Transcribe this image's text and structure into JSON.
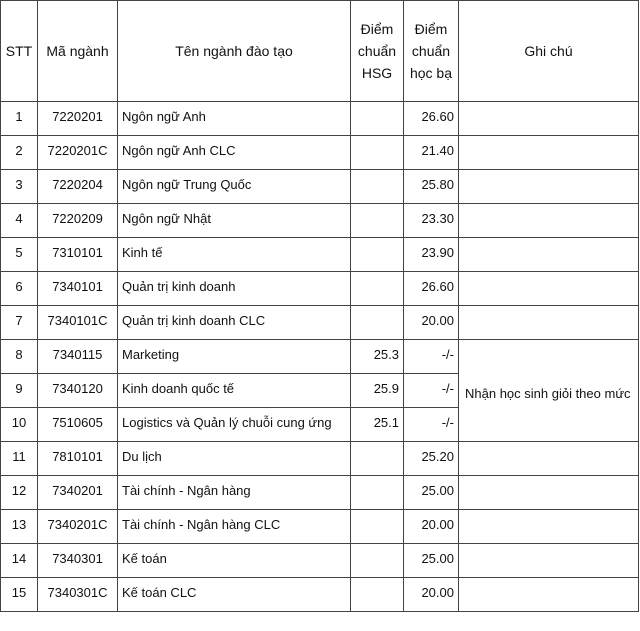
{
  "headers": {
    "stt": "STT",
    "ma_nganh": "Mã ngành",
    "ten_nganh": "Tên ngành đào tạo",
    "diem_hsg": "Điểm chuẩn HSG",
    "diem_hoc_ba": "Điểm chuẩn học bạ",
    "ghi_chu": "Ghi chú"
  },
  "rows": [
    {
      "stt": "1",
      "ma": "7220201",
      "ten": "Ngôn ngữ Anh",
      "hsg": "",
      "hocba": "26.60"
    },
    {
      "stt": "2",
      "ma": "7220201C",
      "ten": "Ngôn ngữ Anh CLC",
      "hsg": "",
      "hocba": "21.40"
    },
    {
      "stt": "3",
      "ma": "7220204",
      "ten": "Ngôn ngữ Trung Quốc",
      "hsg": "",
      "hocba": "25.80"
    },
    {
      "stt": "4",
      "ma": "7220209",
      "ten": "Ngôn ngữ Nhật",
      "hsg": "",
      "hocba": "23.30"
    },
    {
      "stt": "5",
      "ma": "7310101",
      "ten": "Kinh tế",
      "hsg": "",
      "hocba": "23.90"
    },
    {
      "stt": "6",
      "ma": "7340101",
      "ten": "Quản trị kinh doanh",
      "hsg": "",
      "hocba": "26.60"
    },
    {
      "stt": "7",
      "ma": "7340101C",
      "ten": "Quản trị kinh doanh CLC",
      "hsg": "",
      "hocba": "20.00"
    },
    {
      "stt": "8",
      "ma": "7340115",
      "ten": "Marketing",
      "hsg": "25.3",
      "hocba": "-/-"
    },
    {
      "stt": "9",
      "ma": "7340120",
      "ten": "Kinh doanh quốc tế",
      "hsg": "25.9",
      "hocba": "-/-"
    },
    {
      "stt": "10",
      "ma": "7510605",
      "ten": "Logistics và Quản lý chuỗi cung ứng",
      "hsg": "25.1",
      "hocba": "-/-"
    },
    {
      "stt": "11",
      "ma": "7810101",
      "ten": "Du lịch",
      "hsg": "",
      "hocba": "25.20"
    },
    {
      "stt": "12",
      "ma": "7340201",
      "ten": "Tài chính - Ngân hàng",
      "hsg": "",
      "hocba": "25.00"
    },
    {
      "stt": "13",
      "ma": "7340201C",
      "ten": "Tài chính - Ngân hàng CLC",
      "hsg": "",
      "hocba": "20.00"
    },
    {
      "stt": "14",
      "ma": "7340301",
      "ten": "Kế toán",
      "hsg": "",
      "hocba": "25.00"
    },
    {
      "stt": "15",
      "ma": "7340301C",
      "ten": "Kế toán CLC",
      "hsg": "",
      "hocba": "20.00"
    }
  ],
  "merged_note": "Nhận học sinh giỏi theo mức"
}
